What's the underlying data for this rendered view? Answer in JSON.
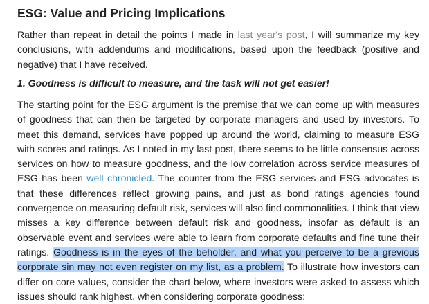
{
  "article": {
    "title": "ESG: Value and Pricing Implications",
    "intro": {
      "before_link": "Rather than repeat in detail the points I made in ",
      "link_text": "last year's post",
      "after_link": ", I will summarize my key conclusions, with addendums and modifications, based upon the feedback (positive and negative) that I have received."
    },
    "section_heading": "1. Goodness is difficult to measure, and the task will not get easier!",
    "body": {
      "before_link": "The starting point for the ESG argument is the premise that we can come up with measures of goodness that can then be targeted by corporate managers and used by investors. To meet this demand, services have popped up around the world, claiming to measure ESG with scores and ratings. As I noted in my last post, there seems to be little consensus across services on how to measure goodness, and the low correlation across service measures of ESG has been ",
      "link_text": "well chronicled",
      "after_link": ". The counter from the ESG services and ESG advocates is that these differences reflect growing pains, and just as bond ratings agencies found convergence on measuring default risk, services will also find commonalities. I think that view misses a key difference between default risk and goodness, insofar as default is an observable event and services were able to learn from corporate defaults and fine tune their ratings. ",
      "highlighted": "Goodness is in the eyes of the beholder, and what you perceive to be a grevious corporate sin may not even register on my list, as a problem.",
      "after_highlight": " To illustrate how investors can differ on core values, consider the chart below, where investors were asked to assess which issues should rank highest, when considering corporate goodness:"
    }
  },
  "colors": {
    "text": "#222222",
    "visited_link": "#888888",
    "link": "#2a8ad4",
    "selection_highlight": "#b4d5fd"
  }
}
